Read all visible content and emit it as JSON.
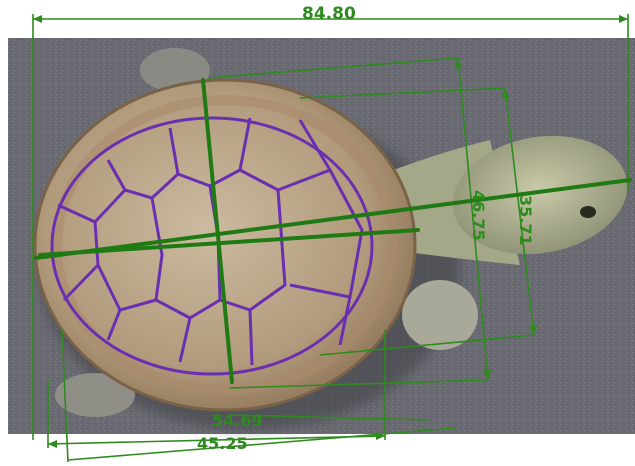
{
  "measurements": {
    "total_length": "84.80",
    "shell_length": "45.25",
    "carapace_diagonal": "54.69",
    "head_width": "35.71",
    "neck_span": "46.75"
  },
  "colors": {
    "background": "#6a6b72",
    "measure_line": "#2e8b1e",
    "scute_outline": "#6a2fb0",
    "carapace": "#b59a7a",
    "head": "#a8ad8e"
  }
}
